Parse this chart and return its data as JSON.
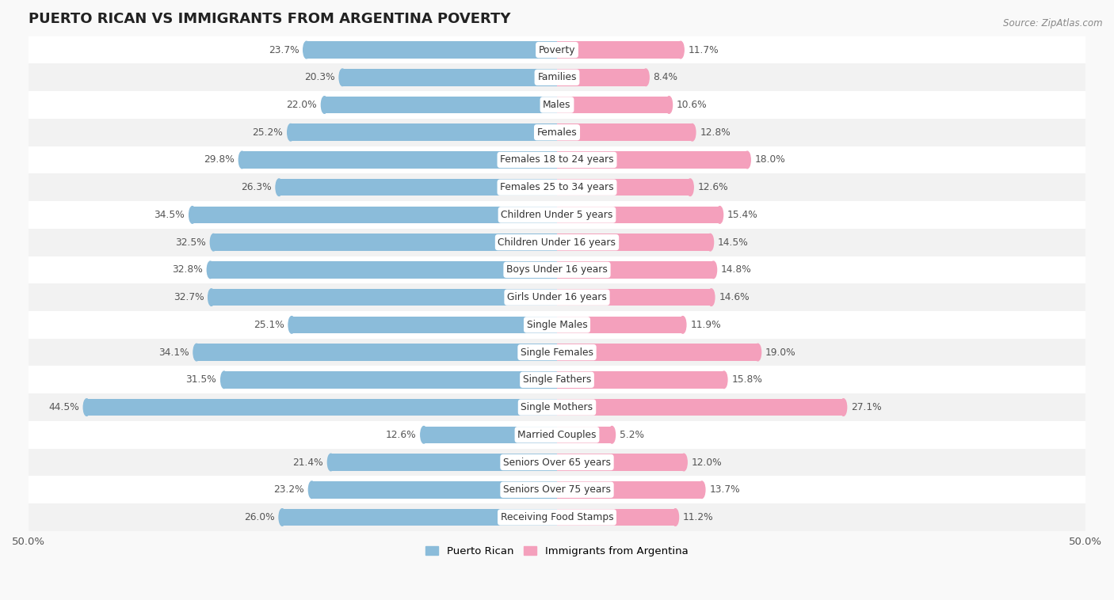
{
  "title": "PUERTO RICAN VS IMMIGRANTS FROM ARGENTINA POVERTY",
  "source": "Source: ZipAtlas.com",
  "categories": [
    "Poverty",
    "Families",
    "Males",
    "Females",
    "Females 18 to 24 years",
    "Females 25 to 34 years",
    "Children Under 5 years",
    "Children Under 16 years",
    "Boys Under 16 years",
    "Girls Under 16 years",
    "Single Males",
    "Single Females",
    "Single Fathers",
    "Single Mothers",
    "Married Couples",
    "Seniors Over 65 years",
    "Seniors Over 75 years",
    "Receiving Food Stamps"
  ],
  "puerto_rican": [
    23.7,
    20.3,
    22.0,
    25.2,
    29.8,
    26.3,
    34.5,
    32.5,
    32.8,
    32.7,
    25.1,
    34.1,
    31.5,
    44.5,
    12.6,
    21.4,
    23.2,
    26.0
  ],
  "argentina": [
    11.7,
    8.4,
    10.6,
    12.8,
    18.0,
    12.6,
    15.4,
    14.5,
    14.8,
    14.6,
    11.9,
    19.0,
    15.8,
    27.1,
    5.2,
    12.0,
    13.7,
    11.2
  ],
  "puerto_rican_color": "#8bbcda",
  "argentina_color": "#f4a0bc",
  "row_color_odd": "#f2f2f2",
  "row_color_even": "#ffffff",
  "label_color": "#555555",
  "value_label_color": "#555555",
  "axis_max": 50.0,
  "bar_height": 0.62,
  "legend_labels": [
    "Puerto Rican",
    "Immigrants from Argentina"
  ],
  "title_fontsize": 13,
  "label_fontsize": 8.8,
  "value_fontsize": 8.8
}
